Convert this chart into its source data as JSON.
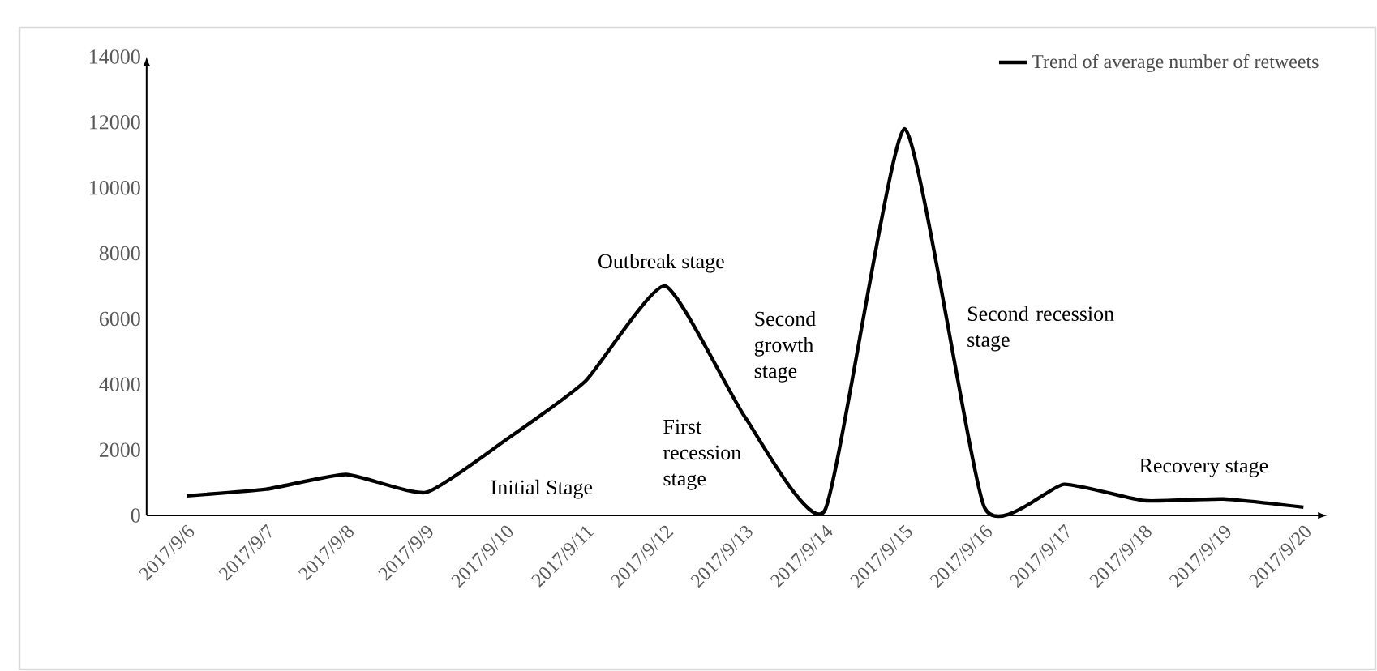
{
  "chart_data": {
    "type": "line",
    "categories": [
      "2017/9/6",
      "2017/9/7",
      "2017/9/8",
      "2017/9/9",
      "2017/9/10",
      "2017/9/11",
      "2017/9/12",
      "2017/9/13",
      "2017/9/14",
      "2017/9/15",
      "2017/9/16",
      "2017/9/17",
      "2017/9/18",
      "2017/9/19",
      "2017/9/20"
    ],
    "series": [
      {
        "name": "Trend of average number of retweets",
        "color": "#000000",
        "values": [
          600,
          800,
          1250,
          700,
          2300,
          4100,
          7000,
          3000,
          150,
          11800,
          250,
          950,
          450,
          500,
          250
        ]
      }
    ],
    "ylim": [
      0,
      14000
    ],
    "yticks": [
      0,
      2000,
      4000,
      6000,
      8000,
      10000,
      12000,
      14000
    ],
    "legend": "top right",
    "marker": "none",
    "line_style": "solid",
    "grid": false,
    "annotations": [
      "Initial Stage",
      "Outbreak stage",
      "First recession stage",
      "Second growth stage",
      "Second recession stage",
      "Recovery stage"
    ]
  }
}
